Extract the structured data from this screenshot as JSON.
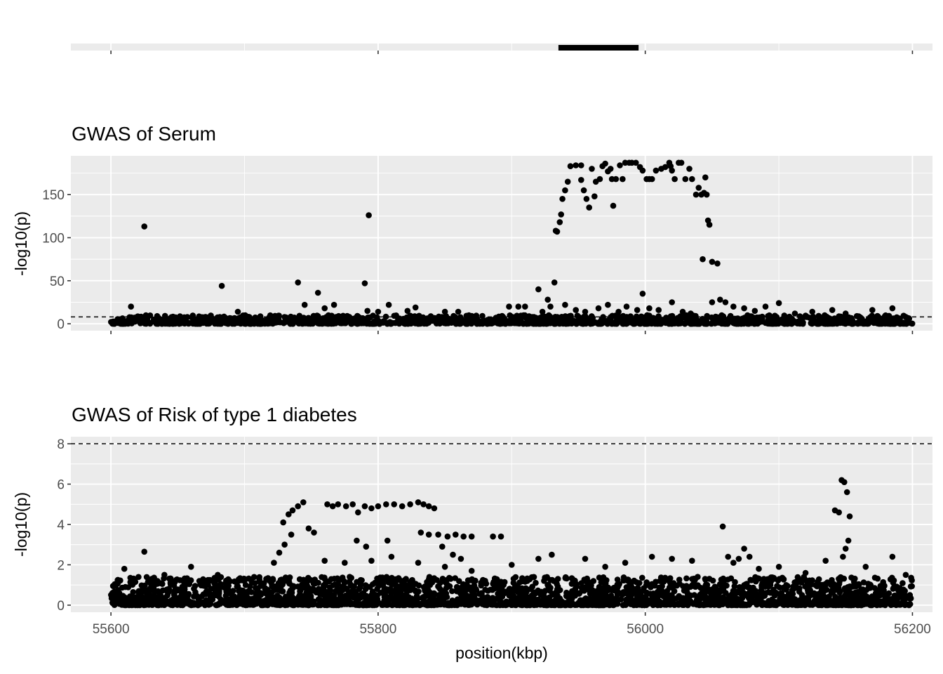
{
  "chart_data": [
    {
      "type": "bar",
      "title": "",
      "description_of_mark": "gene track",
      "xlim": [
        55570,
        56215
      ],
      "x_breaks": [
        55600,
        55800,
        56000,
        56200
      ],
      "segments": [
        {
          "start": 55935,
          "end": 55995
        }
      ]
    },
    {
      "type": "scatter",
      "title": "GWAS of Serum",
      "xlabel": "",
      "ylabel": "-log10(p)",
      "xlim": [
        55570,
        56215
      ],
      "ylim": [
        -8,
        195
      ],
      "y_ticks": [
        0,
        50,
        100,
        150
      ],
      "x_breaks": [
        55600,
        55800,
        56000,
        56200
      ],
      "threshold": 8,
      "grid": true,
      "points": [
        [
          55625,
          113
        ],
        [
          55615,
          20
        ],
        [
          55683,
          44
        ],
        [
          55695,
          14
        ],
        [
          55740,
          48
        ],
        [
          55755,
          36
        ],
        [
          55745,
          22
        ],
        [
          55760,
          18
        ],
        [
          55767,
          22
        ],
        [
          55790,
          47
        ],
        [
          55793,
          126
        ],
        [
          55792,
          15
        ],
        [
          55800,
          14
        ],
        [
          55808,
          22
        ],
        [
          55822,
          15
        ],
        [
          55828,
          19
        ],
        [
          55850,
          14
        ],
        [
          55860,
          14
        ],
        [
          55898,
          20
        ],
        [
          55905,
          20
        ],
        [
          55910,
          20
        ],
        [
          55920,
          40
        ],
        [
          55923,
          14
        ],
        [
          55927,
          28
        ],
        [
          55929,
          20
        ],
        [
          55932,
          48
        ],
        [
          55933,
          108
        ],
        [
          55934,
          107
        ],
        [
          55936,
          118
        ],
        [
          55937,
          127
        ],
        [
          55938,
          145
        ],
        [
          55940,
          155
        ],
        [
          55942,
          165
        ],
        [
          55944,
          183
        ],
        [
          55948,
          184
        ],
        [
          55952,
          184
        ],
        [
          55952,
          167
        ],
        [
          55954,
          155
        ],
        [
          55956,
          145
        ],
        [
          55958,
          135
        ],
        [
          55960,
          180
        ],
        [
          55962,
          148
        ],
        [
          55963,
          165
        ],
        [
          55966,
          168
        ],
        [
          55968,
          183
        ],
        [
          55970,
          186
        ],
        [
          55972,
          177
        ],
        [
          55974,
          180
        ],
        [
          55975,
          168
        ],
        [
          55976,
          137
        ],
        [
          55978,
          168
        ],
        [
          55981,
          184
        ],
        [
          55983,
          168
        ],
        [
          55985,
          187
        ],
        [
          55988,
          187
        ],
        [
          55990,
          187
        ],
        [
          55993,
          187
        ],
        [
          55996,
          182
        ],
        [
          55998,
          178
        ],
        [
          56001,
          168
        ],
        [
          56003,
          168
        ],
        [
          56005,
          168
        ],
        [
          56008,
          178
        ],
        [
          56012,
          180
        ],
        [
          56015,
          182
        ],
        [
          56018,
          187
        ],
        [
          56019,
          183
        ],
        [
          56020,
          178
        ],
        [
          56022,
          168
        ],
        [
          56025,
          187
        ],
        [
          56027,
          187
        ],
        [
          56030,
          168
        ],
        [
          56033,
          180
        ],
        [
          56035,
          168
        ],
        [
          56038,
          150
        ],
        [
          56040,
          158
        ],
        [
          56042,
          150
        ],
        [
          56044,
          152
        ],
        [
          56045,
          170
        ],
        [
          56046,
          150
        ],
        [
          56047,
          120
        ],
        [
          56048,
          115
        ],
        [
          56043,
          75
        ],
        [
          56050,
          72
        ],
        [
          56054,
          70
        ],
        [
          56050,
          25
        ],
        [
          56056,
          28
        ],
        [
          56060,
          25
        ],
        [
          56066,
          20
        ],
        [
          56074,
          18
        ],
        [
          55940,
          22
        ],
        [
          55948,
          16
        ],
        [
          55955,
          14
        ],
        [
          55965,
          18
        ],
        [
          55972,
          22
        ],
        [
          55980,
          14
        ],
        [
          55986,
          20
        ],
        [
          55994,
          16
        ],
        [
          55998,
          35
        ],
        [
          56003,
          18
        ],
        [
          56010,
          16
        ],
        [
          56020,
          25
        ],
        [
          56028,
          14
        ],
        [
          56034,
          12
        ],
        [
          56082,
          15
        ],
        [
          56090,
          20
        ],
        [
          56100,
          24
        ],
        [
          56112,
          12
        ],
        [
          56125,
          14
        ],
        [
          56140,
          16
        ],
        [
          56150,
          12
        ],
        [
          56170,
          16
        ],
        [
          56185,
          18
        ],
        [
          56195,
          8
        ]
      ],
      "baseline_band": {
        "x_range": [
          55600,
          56200
        ],
        "y_range": [
          0,
          10
        ],
        "count": 1400
      }
    },
    {
      "type": "scatter",
      "title": "GWAS of Risk of type 1 diabetes",
      "xlabel": "position(kbp)",
      "ylabel": "-log10(p)",
      "xlim": [
        55570,
        56215
      ],
      "ylim": [
        -0.35,
        8.35
      ],
      "y_ticks": [
        0,
        2,
        4,
        6,
        8
      ],
      "x_ticks": [
        55600,
        55800,
        56000,
        56200
      ],
      "x_tick_labels": [
        "55600",
        "55800",
        "56000",
        "56200"
      ],
      "threshold": 8,
      "grid": true,
      "points": [
        [
          55625,
          2.65
        ],
        [
          55722,
          2.1
        ],
        [
          55726,
          2.6
        ],
        [
          55730,
          3.0
        ],
        [
          55735,
          3.5
        ],
        [
          55729,
          4.1
        ],
        [
          55733,
          4.5
        ],
        [
          55736,
          4.7
        ],
        [
          55740,
          4.9
        ],
        [
          55744,
          5.1
        ],
        [
          55748,
          3.8
        ],
        [
          55752,
          3.6
        ],
        [
          55762,
          5.0
        ],
        [
          55766,
          4.9
        ],
        [
          55770,
          5.0
        ],
        [
          55776,
          4.9
        ],
        [
          55781,
          5.0
        ],
        [
          55785,
          4.6
        ],
        [
          55790,
          4.9
        ],
        [
          55795,
          4.8
        ],
        [
          55800,
          4.9
        ],
        [
          55806,
          5.0
        ],
        [
          55812,
          5.0
        ],
        [
          55818,
          4.9
        ],
        [
          55824,
          5.0
        ],
        [
          55830,
          5.1
        ],
        [
          55834,
          5.0
        ],
        [
          55838,
          4.9
        ],
        [
          55842,
          4.8
        ],
        [
          55784,
          3.2
        ],
        [
          55791,
          2.9
        ],
        [
          55807,
          3.2
        ],
        [
          55832,
          3.6
        ],
        [
          55838,
          3.5
        ],
        [
          55845,
          3.5
        ],
        [
          55852,
          3.4
        ],
        [
          55858,
          3.5
        ],
        [
          55864,
          3.4
        ],
        [
          55870,
          3.4
        ],
        [
          55886,
          3.4
        ],
        [
          55892,
          3.4
        ],
        [
          55848,
          2.9
        ],
        [
          55856,
          2.5
        ],
        [
          55862,
          2.3
        ],
        [
          55760,
          2.2
        ],
        [
          55775,
          2.1
        ],
        [
          55795,
          2.2
        ],
        [
          55810,
          2.4
        ],
        [
          55830,
          2.1
        ],
        [
          55850,
          1.9
        ],
        [
          55870,
          1.7
        ],
        [
          55900,
          2.0
        ],
        [
          55920,
          2.3
        ],
        [
          55930,
          2.5
        ],
        [
          55955,
          2.3
        ],
        [
          55970,
          1.9
        ],
        [
          55985,
          2.1
        ],
        [
          56005,
          2.4
        ],
        [
          56020,
          2.3
        ],
        [
          56035,
          2.2
        ],
        [
          56058,
          3.9
        ],
        [
          56062,
          2.4
        ],
        [
          56066,
          2.1
        ],
        [
          56070,
          2.3
        ],
        [
          56074,
          2.8
        ],
        [
          56078,
          2.4
        ],
        [
          56085,
          1.8
        ],
        [
          56100,
          1.9
        ],
        [
          56120,
          1.6
        ],
        [
          56135,
          2.2
        ],
        [
          56142,
          4.7
        ],
        [
          56145,
          4.6
        ],
        [
          56147,
          6.2
        ],
        [
          56149,
          6.1
        ],
        [
          56151,
          5.6
        ],
        [
          56153,
          4.4
        ],
        [
          56152,
          3.2
        ],
        [
          56150,
          2.8
        ],
        [
          56148,
          2.4
        ],
        [
          56165,
          1.9
        ],
        [
          56185,
          2.4
        ],
        [
          56195,
          1.5
        ],
        [
          55610,
          1.8
        ],
        [
          55640,
          1.5
        ],
        [
          55660,
          1.9
        ],
        [
          55680,
          1.5
        ],
        [
          55700,
          1.3
        ]
      ],
      "baseline_band": {
        "x_range": [
          55600,
          56200
        ],
        "y_range": [
          0,
          1.4
        ],
        "count": 2600
      }
    }
  ]
}
